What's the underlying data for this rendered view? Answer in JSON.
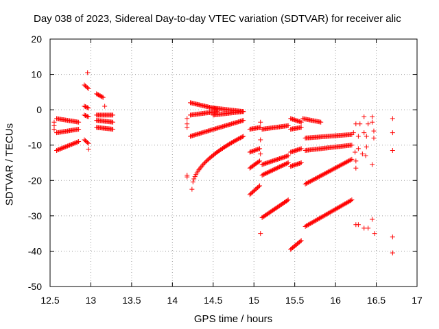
{
  "chart_data": {
    "type": "scatter",
    "title": "Day 038 of 2023, Sidereal Day-to-day VTEC variation (SDTVAR) for receiver alic",
    "xlabel": "GPS time / hours",
    "ylabel": "SDTVAR / TECUs",
    "xlim": [
      12.5,
      17
    ],
    "ylim": [
      -50,
      20
    ],
    "xticks": [
      "12.5",
      "13",
      "13.5",
      "14",
      "14.5",
      "15",
      "15.5",
      "16",
      "16.5",
      "17"
    ],
    "yticks": [
      "20",
      "10",
      "0",
      "-10",
      "-20",
      "-30",
      "-40",
      "-50"
    ],
    "grid": true,
    "marker": "+",
    "color": "#ff0000",
    "segments": [
      {
        "x0": 12.58,
        "x1": 12.85,
        "y0": -2.5,
        "y1": -3.5
      },
      {
        "x0": 12.58,
        "x1": 12.85,
        "y0": -6.5,
        "y1": -5.5
      },
      {
        "x0": 12.58,
        "x1": 12.85,
        "y0": -11.5,
        "y1": -9.0
      },
      {
        "x0": 12.92,
        "x1": 12.97,
        "y0": 7.0,
        "y1": 6.0
      },
      {
        "x0": 12.92,
        "x1": 12.97,
        "y0": 1.0,
        "y1": 0.5
      },
      {
        "x0": 12.92,
        "x1": 12.97,
        "y0": -1.5,
        "y1": -2.0
      },
      {
        "x0": 12.92,
        "x1": 12.97,
        "y0": -8.5,
        "y1": -9.5
      },
      {
        "x0": 13.07,
        "x1": 13.15,
        "y0": 4.5,
        "y1": 3.5
      },
      {
        "x0": 13.07,
        "x1": 13.27,
        "y0": -1.5,
        "y1": -1.5
      },
      {
        "x0": 13.07,
        "x1": 13.27,
        "y0": -3.0,
        "y1": -3.5
      },
      {
        "x0": 13.07,
        "x1": 13.27,
        "y0": -5.0,
        "y1": -5.5
      },
      {
        "x0": 14.22,
        "x1": 14.55,
        "y0": 2.0,
        "y1": 0.2
      },
      {
        "x0": 14.22,
        "x1": 14.55,
        "y0": -1.5,
        "y1": -0.5
      },
      {
        "x0": 14.22,
        "x1": 14.87,
        "y0": -7.5,
        "y1": -3.0
      },
      {
        "x0": 14.5,
        "x1": 14.87,
        "y0": 0.5,
        "y1": -0.5
      },
      {
        "x0": 14.5,
        "x1": 14.87,
        "y0": -1.5,
        "y1": -0.5
      },
      {
        "x0": 14.24,
        "x1": 14.87,
        "y0": -22.5,
        "y1": -7.5,
        "curve": true
      },
      {
        "x0": 14.95,
        "x1": 15.08,
        "y0": -5.5,
        "y1": -5.0
      },
      {
        "x0": 15.1,
        "x1": 15.42,
        "y0": -5.5,
        "y1": -4.5
      },
      {
        "x0": 14.95,
        "x1": 15.07,
        "y0": -12.0,
        "y1": -11.0
      },
      {
        "x0": 14.95,
        "x1": 15.07,
        "y0": -16.5,
        "y1": -14.5
      },
      {
        "x0": 14.95,
        "x1": 15.07,
        "y0": -24.0,
        "y1": -21.5
      },
      {
        "x0": 15.1,
        "x1": 15.42,
        "y0": -15.5,
        "y1": -13.0
      },
      {
        "x0": 15.1,
        "x1": 15.42,
        "y0": -18.5,
        "y1": -15.0
      },
      {
        "x0": 15.1,
        "x1": 15.42,
        "y0": -30.5,
        "y1": -25.5
      },
      {
        "x0": 15.45,
        "x1": 15.58,
        "y0": -2.5,
        "y1": -3.5
      },
      {
        "x0": 15.6,
        "x1": 15.82,
        "y0": -2.5,
        "y1": -3.5
      },
      {
        "x0": 15.45,
        "x1": 15.58,
        "y0": -5.5,
        "y1": -5.0
      },
      {
        "x0": 15.45,
        "x1": 15.58,
        "y0": -12.0,
        "y1": -11.0
      },
      {
        "x0": 15.45,
        "x1": 15.58,
        "y0": -16.0,
        "y1": -15.0
      },
      {
        "x0": 15.45,
        "x1": 15.58,
        "y0": -39.5,
        "y1": -37.0
      },
      {
        "x0": 15.63,
        "x1": 16.2,
        "y0": -8.0,
        "y1": -7.0
      },
      {
        "x0": 15.63,
        "x1": 16.2,
        "y0": -11.5,
        "y1": -10.0
      },
      {
        "x0": 15.63,
        "x1": 16.2,
        "y0": -21.0,
        "y1": -14.0
      },
      {
        "x0": 15.63,
        "x1": 16.2,
        "y0": -33.0,
        "y1": -25.5
      }
    ],
    "scatter_points": [
      [
        12.55,
        -3.5
      ],
      [
        12.55,
        -4.5
      ],
      [
        12.55,
        -5.5
      ],
      [
        12.96,
        10.5
      ],
      [
        12.97,
        -11.2
      ],
      [
        13.17,
        1.0
      ],
      [
        14.18,
        -18.5
      ],
      [
        14.18,
        -19.0
      ],
      [
        14.18,
        -2.5
      ],
      [
        14.18,
        -4.0
      ],
      [
        14.18,
        -5.0
      ],
      [
        15.08,
        -3.5
      ],
      [
        15.08,
        -8.5
      ],
      [
        15.08,
        -12.5
      ],
      [
        15.08,
        -35.0
      ],
      [
        16.25,
        -4.0
      ],
      [
        16.3,
        -4.0
      ],
      [
        16.22,
        -6.5
      ],
      [
        16.28,
        -7.5
      ],
      [
        16.35,
        -6.5
      ],
      [
        16.4,
        -4.0
      ],
      [
        16.38,
        -7.5
      ],
      [
        16.28,
        -11.0
      ],
      [
        16.24,
        -12.0
      ],
      [
        16.33,
        -12.5
      ],
      [
        16.37,
        -13.0
      ],
      [
        16.38,
        -10.5
      ],
      [
        16.25,
        -14.5
      ],
      [
        16.25,
        -16.5
      ],
      [
        16.45,
        -2.0
      ],
      [
        16.45,
        -3.5
      ],
      [
        16.47,
        -6.0
      ],
      [
        16.47,
        -8.0
      ],
      [
        16.45,
        -15.5
      ],
      [
        16.35,
        -2.0
      ],
      [
        16.25,
        -32.5
      ],
      [
        16.28,
        -32.5
      ],
      [
        16.35,
        -33.5
      ],
      [
        16.4,
        -33.5
      ],
      [
        16.45,
        -31.0
      ],
      [
        16.48,
        -35.0
      ],
      [
        16.7,
        -2.5
      ],
      [
        16.7,
        -6.5
      ],
      [
        16.7,
        -11.5
      ],
      [
        16.7,
        -36.0
      ],
      [
        16.7,
        -40.5
      ]
    ]
  }
}
